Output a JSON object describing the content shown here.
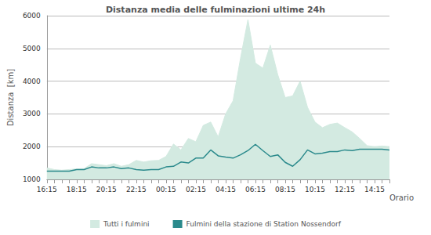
{
  "chart_data": {
    "type": "line",
    "title": "Distanza media delle fulminazioni ultime 24h",
    "x_label": "Orario",
    "y_label": "Distanza  [km]",
    "categories": [
      "16:15",
      null,
      null,
      null,
      "18:15",
      null,
      null,
      null,
      "20:15",
      null,
      null,
      null,
      "22:15",
      null,
      null,
      null,
      "00:15",
      null,
      null,
      null,
      "02:15",
      null,
      null,
      null,
      "04:15",
      null,
      null,
      null,
      "06:15",
      null,
      null,
      null,
      "08:15",
      null,
      null,
      null,
      "10:15",
      null,
      null,
      null,
      "12:15",
      null,
      null,
      null,
      "14:15",
      null,
      null
    ],
    "series": [
      {
        "name": "Tutti i fulmini",
        "type": "area",
        "color": "#d3eae1",
        "values": [
          1350,
          1300,
          1280,
          1300,
          1320,
          1330,
          1480,
          1450,
          1420,
          1480,
          1400,
          1450,
          1580,
          1530,
          1570,
          1580,
          1700,
          2080,
          1900,
          2250,
          2150,
          2650,
          2750,
          2300,
          3000,
          3400,
          4700,
          5880,
          4550,
          4400,
          5100,
          4200,
          3500,
          3550,
          4000,
          3200,
          2750,
          2580,
          2680,
          2720,
          2580,
          2450,
          2250,
          2030,
          2000,
          2020,
          2000
        ]
      },
      {
        "name": "Fulmini della stazione di Station Nossendorf",
        "type": "line",
        "color": "#2b8a8c",
        "values": [
          1250,
          1250,
          1250,
          1250,
          1300,
          1300,
          1380,
          1350,
          1350,
          1380,
          1330,
          1350,
          1300,
          1280,
          1300,
          1300,
          1380,
          1400,
          1530,
          1500,
          1650,
          1650,
          1900,
          1720,
          1680,
          1650,
          1750,
          1880,
          2070,
          1880,
          1700,
          1750,
          1520,
          1400,
          1600,
          1900,
          1780,
          1800,
          1850,
          1850,
          1900,
          1880,
          1920,
          1920,
          1920,
          1920,
          1900
        ]
      }
    ],
    "ylim": [
      1000,
      6000
    ],
    "yticks": [
      1000,
      2000,
      3000,
      4000,
      5000,
      6000
    ],
    "grid": true,
    "legend": "bottom"
  }
}
